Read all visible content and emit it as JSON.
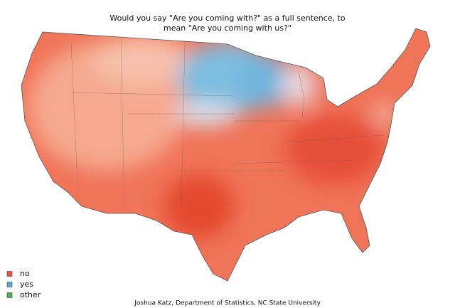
{
  "title": {
    "lines": [
      "Would you say \"Are you coming with?\" as a full sentence, to",
      "mean \"Are you coming with us?\""
    ]
  },
  "legend": [
    {
      "label": "no",
      "color": "#e8543f"
    },
    {
      "label": "yes",
      "color": "#5aa9d6"
    },
    {
      "label": "other",
      "color": "#4caf50"
    }
  ],
  "credit": "Joshua Katz, Department of Statistics, NC State University"
}
